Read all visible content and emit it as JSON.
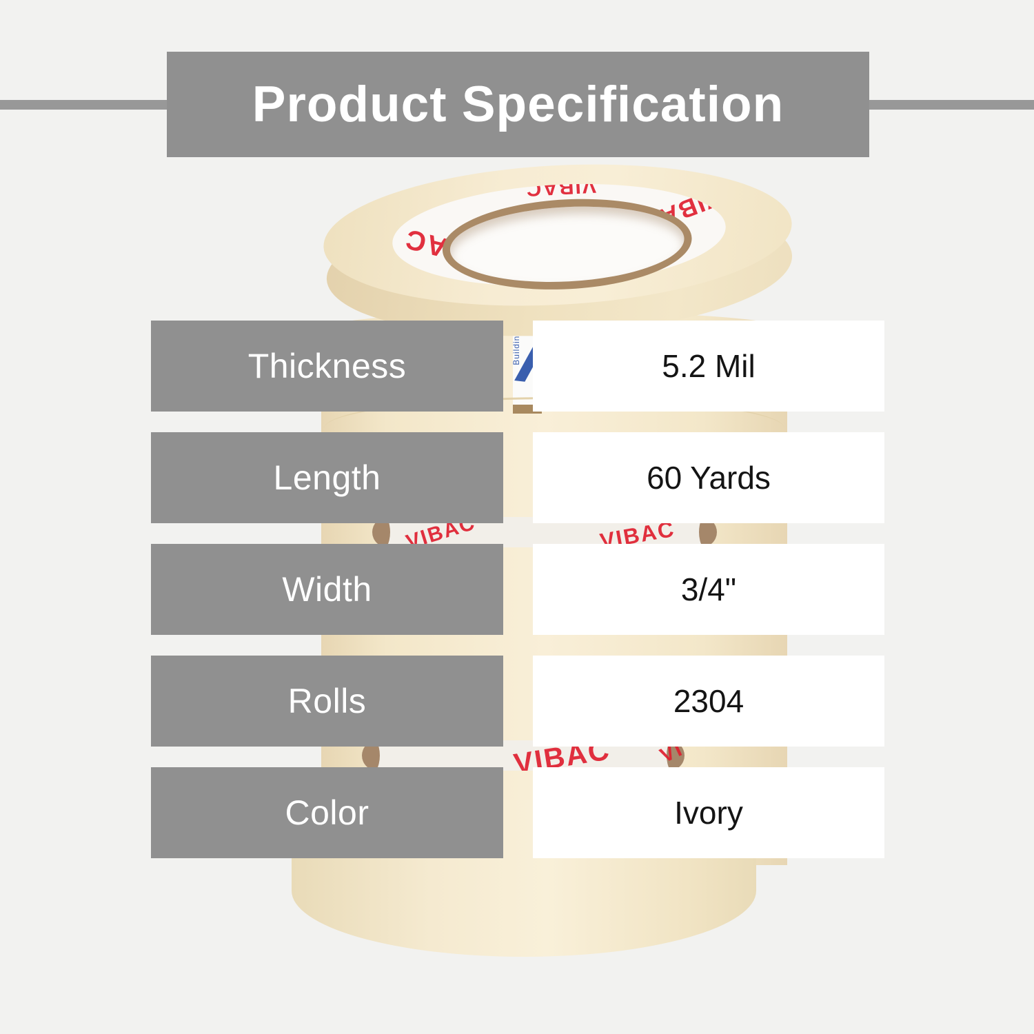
{
  "header": {
    "title": "Product Specification"
  },
  "specs": {
    "rows": [
      {
        "label": "Thickness",
        "value": "5.2 Mil"
      },
      {
        "label": "Length",
        "value": "60 Yards"
      },
      {
        "label": "Width",
        "value": "3/4\""
      },
      {
        "label": "Rolls",
        "value": "2304"
      },
      {
        "label": "Color",
        "value": "Ivory"
      }
    ]
  },
  "product": {
    "description": "stack of ivory masking tape rolls",
    "brand_text": "VIBAC",
    "label_text": "Building",
    "colors": {
      "accent_gray": "#909090",
      "page_background": "#f2f2f0",
      "tape_cream": "#f5e8cb",
      "core_brown": "#aa8a66",
      "brand_red": "#df1f2f",
      "label_blue": "#3a5fae"
    }
  }
}
